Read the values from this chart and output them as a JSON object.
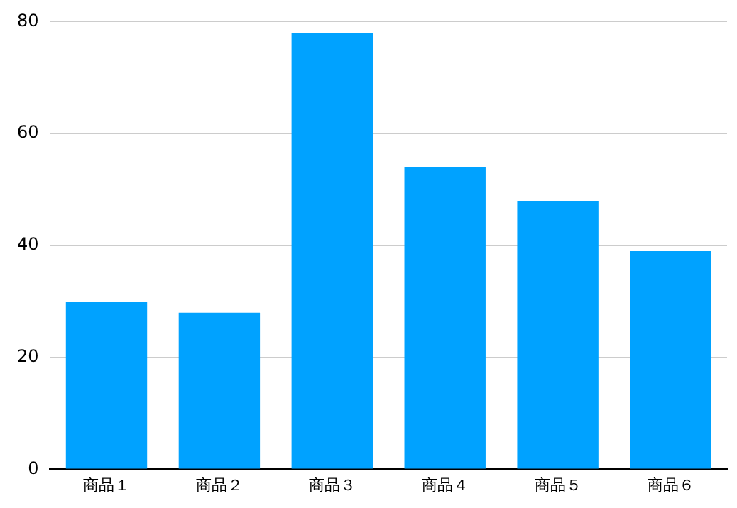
{
  "chart_data": {
    "type": "bar",
    "categories": [
      "商品１",
      "商品２",
      "商品３",
      "商品４",
      "商品５",
      "商品６"
    ],
    "values": [
      30,
      28,
      78,
      54,
      48,
      39
    ],
    "color": "#00a2ff",
    "ylim": [
      0,
      80
    ],
    "yticks": [
      0,
      20,
      40,
      60,
      80
    ],
    "grid": "y",
    "legend": false
  }
}
